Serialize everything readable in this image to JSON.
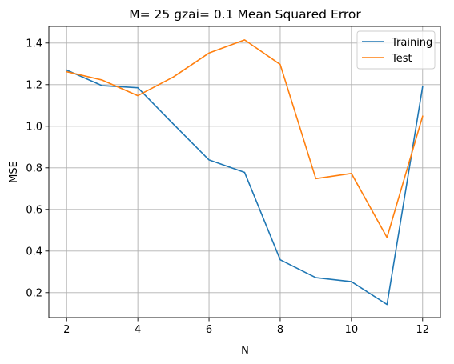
{
  "chart_data": {
    "type": "line",
    "title": "M= 25 gzai= 0.1 Mean Squared Error",
    "xlabel": "N",
    "ylabel": "MSE",
    "x": [
      2,
      3,
      4,
      5,
      6,
      7,
      8,
      9,
      10,
      11,
      12
    ],
    "xlim": [
      1.5,
      12.5
    ],
    "ylim": [
      0.08,
      1.48
    ],
    "xticks": [
      2,
      4,
      6,
      8,
      10,
      12
    ],
    "yticks": [
      0.2,
      0.4,
      0.6,
      0.8,
      1.0,
      1.2,
      1.4
    ],
    "xtick_labels": [
      "2",
      "4",
      "6",
      "8",
      "10",
      "12"
    ],
    "ytick_labels": [
      "0.2",
      "0.4",
      "0.6",
      "0.8",
      "1.0",
      "1.2",
      "1.4"
    ],
    "grid": true,
    "legend_position": "top-right",
    "series": [
      {
        "name": "Training",
        "color": "#1f77b4",
        "values": [
          1.27,
          1.195,
          1.185,
          1.01,
          0.838,
          0.778,
          0.358,
          0.272,
          0.253,
          0.143,
          1.19
        ]
      },
      {
        "name": "Test",
        "color": "#ff7f0e",
        "values": [
          1.262,
          1.222,
          1.147,
          1.237,
          1.352,
          1.415,
          1.297,
          0.748,
          0.773,
          0.465,
          1.048
        ]
      }
    ]
  }
}
